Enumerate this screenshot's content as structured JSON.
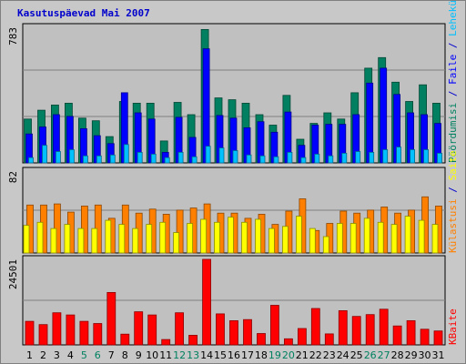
{
  "title": "Kasutuspäevad Mai 2007",
  "colors": {
    "background": "#c8c8c8",
    "plot_background": "#c0c0c0",
    "weekday_label": "#000000",
    "weekend_label": "#008060",
    "pages": "#008060",
    "files": "#0000ff",
    "hits": "#00c0ff",
    "visits": "#ff8000",
    "sites": "#ffff00",
    "kbytes": "#ff0000"
  },
  "chart_data": [
    {
      "type": "bar",
      "panel": "hits",
      "scale_max_label": "783",
      "ylim": [
        0,
        783
      ],
      "categories": [
        "1",
        "2",
        "3",
        "4",
        "5",
        "6",
        "7",
        "8",
        "9",
        "10",
        "11",
        "12",
        "13",
        "14",
        "15",
        "16",
        "17",
        "18",
        "19",
        "20",
        "21",
        "22",
        "23",
        "24",
        "25",
        "26",
        "27",
        "28",
        "29",
        "30",
        "31"
      ],
      "weekend_days": [
        "5",
        "6",
        "12",
        "13",
        "19",
        "20",
        "26",
        "27"
      ],
      "legend": [
        {
          "label": "Pöördumisi",
          "color": "#008060"
        },
        {
          "label": "Faile",
          "color": "#0000ff"
        },
        {
          "label": "Lehekülgi",
          "color": "#00c0ff"
        }
      ],
      "series": [
        {
          "name": "Pöördumisi",
          "values": [
            250,
            300,
            330,
            340,
            255,
            240,
            150,
            350,
            340,
            340,
            125,
            345,
            275,
            760,
            370,
            360,
            340,
            275,
            215,
            385,
            135,
            225,
            285,
            250,
            400,
            540,
            600,
            460,
            350,
            445,
            340
          ]
        },
        {
          "name": "Faile",
          "values": [
            165,
            205,
            275,
            265,
            195,
            155,
            110,
            400,
            285,
            250,
            60,
            260,
            145,
            650,
            270,
            255,
            200,
            235,
            175,
            290,
            100,
            215,
            220,
            220,
            275,
            455,
            540,
            390,
            285,
            275,
            225
          ]
        },
        {
          "name": "Lehekülgi",
          "values": [
            30,
            100,
            65,
            75,
            40,
            40,
            45,
            105,
            60,
            50,
            30,
            60,
            35,
            95,
            85,
            70,
            45,
            40,
            35,
            60,
            30,
            50,
            40,
            55,
            65,
            60,
            75,
            90,
            75,
            75,
            55
          ]
        }
      ]
    },
    {
      "type": "bar",
      "panel": "visits",
      "scale_max_label": "82",
      "ylim": [
        0,
        82
      ],
      "legend": [
        {
          "label": "Külastusi",
          "color": "#ff8000"
        },
        {
          "label": "Saite",
          "color": "#ffff00"
        }
      ],
      "series": [
        {
          "name": "Külastusi",
          "values": [
            47,
            47,
            48,
            40,
            46,
            47,
            34,
            47,
            39,
            43,
            38,
            42,
            44,
            48,
            39,
            39,
            34,
            38,
            28,
            41,
            53,
            22,
            29,
            41,
            39,
            42,
            45,
            39,
            42,
            55,
            46
          ]
        },
        {
          "name": "Saite",
          "values": [
            27,
            30,
            24,
            28,
            24,
            24,
            32,
            28,
            24,
            28,
            30,
            20,
            29,
            33,
            30,
            35,
            30,
            33,
            24,
            26,
            36,
            24,
            16,
            29,
            29,
            34,
            30,
            28,
            36,
            32,
            28
          ]
        }
      ]
    },
    {
      "type": "bar",
      "panel": "kbytes",
      "scale_max_label": "24501",
      "ylim": [
        0,
        24501
      ],
      "legend": [
        {
          "label": "KBaite",
          "color": "#ff0000"
        }
      ],
      "series": [
        {
          "name": "KBaite",
          "values": [
            6600,
            5700,
            9000,
            8400,
            6600,
            6000,
            14700,
            3000,
            9300,
            8400,
            1500,
            9000,
            2700,
            24000,
            8700,
            6800,
            7100,
            3200,
            11100,
            1700,
            4600,
            10200,
            3100,
            9600,
            8000,
            8500,
            10000,
            5300,
            6800,
            4400,
            3900
          ]
        }
      ]
    }
  ]
}
